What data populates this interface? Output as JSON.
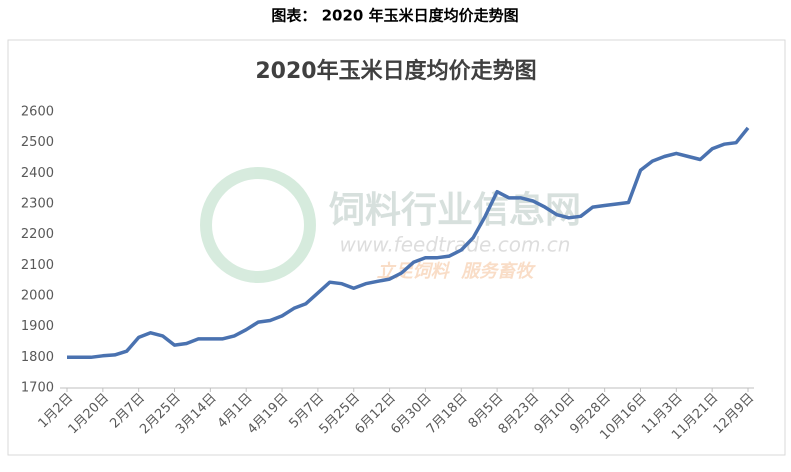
{
  "caption": "图表： 2020 年玉米日度均价走势图",
  "watermark": {
    "name": "饲料行业信息网",
    "url": "www.feedtrade.com.cn",
    "slogan": "立足饲料  服务畜牧"
  },
  "chart_data": {
    "type": "line",
    "title": "2020年玉米日度均价走势图",
    "categories": [
      "1月2日",
      null,
      null,
      "1月20日",
      null,
      null,
      "2月7日",
      null,
      null,
      "2月25日",
      null,
      null,
      "3月14日",
      null,
      null,
      "4月1日",
      null,
      null,
      "4月19日",
      null,
      null,
      "5月7日",
      null,
      null,
      "5月25日",
      null,
      null,
      "6月12日",
      null,
      null,
      "6月30日",
      null,
      null,
      "7月18日",
      null,
      null,
      "8月5日",
      null,
      null,
      "8月23日",
      null,
      null,
      "9月10日",
      null,
      null,
      "9月28日",
      null,
      null,
      "10月16日",
      null,
      null,
      "11月3日",
      null,
      null,
      "11月21日",
      null,
      null,
      "12月9日"
    ],
    "series": [
      {
        "color": "#4a72b0",
        "values": [
          1800,
          1800,
          1800,
          1805,
          1808,
          1820,
          1865,
          1880,
          1870,
          1840,
          1845,
          1860,
          1860,
          1860,
          1870,
          1890,
          1915,
          1920,
          1935,
          1960,
          1975,
          2010,
          2045,
          2040,
          2025,
          2040,
          2048,
          2055,
          2075,
          2110,
          2125,
          2125,
          2130,
          2150,
          2190,
          2260,
          2340,
          2320,
          2320,
          2310,
          2290,
          2265,
          2255,
          2260,
          2290,
          2295,
          2300,
          2305,
          2410,
          2440,
          2455,
          2465,
          2455,
          2445,
          2480,
          2495,
          2500,
          2548
        ]
      }
    ],
    "ylim": [
      1700,
      2600
    ],
    "yticks": [
      1700,
      1800,
      1900,
      2000,
      2100,
      2200,
      2300,
      2400,
      2500,
      2600
    ],
    "grid": false
  }
}
